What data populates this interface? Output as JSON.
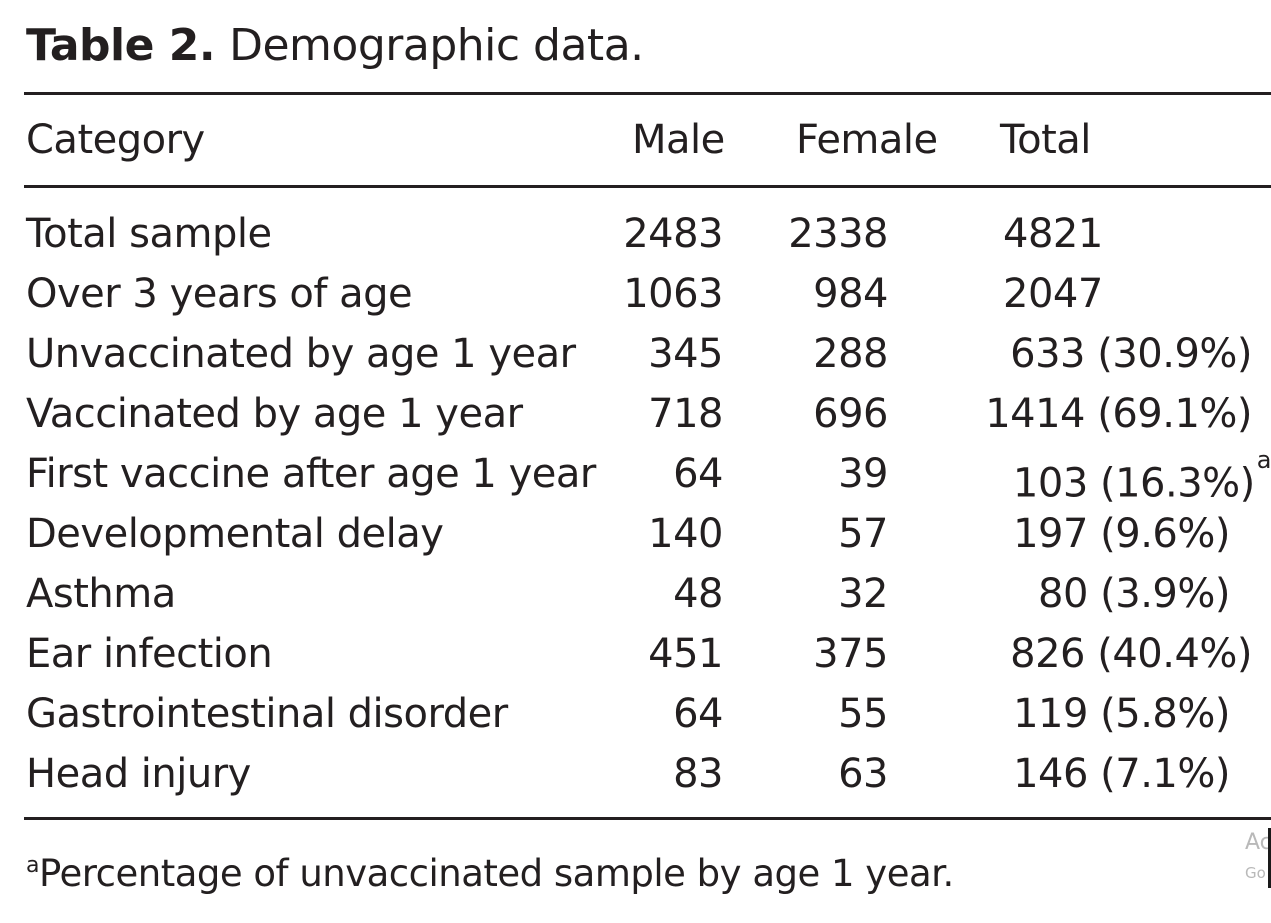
{
  "table": {
    "label": "Table 2.",
    "title": "Demographic data.",
    "columns": {
      "category": "Category",
      "male": "Male",
      "female": "Female",
      "total": "Total"
    },
    "rows": [
      {
        "category": "Total sample",
        "male": "2483",
        "female": "2338",
        "total": "4821",
        "pct": "",
        "note": ""
      },
      {
        "category": "Over 3 years of age",
        "male": "1063",
        "female": "984",
        "total": "2047",
        "pct": "",
        "note": ""
      },
      {
        "category": "Unvaccinated by age 1 year",
        "male": "345",
        "female": "288",
        "total": "633",
        "pct": "(30.9%)",
        "note": ""
      },
      {
        "category": "Vaccinated by age 1 year",
        "male": "718",
        "female": "696",
        "total": "1414",
        "pct": "(69.1%)",
        "note": ""
      },
      {
        "category": "First vaccine after age 1 year",
        "male": "64",
        "female": "39",
        "total": "103",
        "pct": "(16.3%)",
        "note": "a"
      },
      {
        "category": "Developmental delay",
        "male": "140",
        "female": "57",
        "total": "197",
        "pct": "(9.6%)",
        "note": ""
      },
      {
        "category": "Asthma",
        "male": "48",
        "female": "32",
        "total": "80",
        "pct": "(3.9%)",
        "note": ""
      },
      {
        "category": "Ear infection",
        "male": "451",
        "female": "375",
        "total": "826",
        "pct": "(40.4%)",
        "note": ""
      },
      {
        "category": "Gastrointestinal disorder",
        "male": "64",
        "female": "55",
        "total": "119",
        "pct": "(5.8%)",
        "note": ""
      },
      {
        "category": "Head injury",
        "male": "83",
        "female": "63",
        "total": "146",
        "pct": "(7.1%)",
        "note": ""
      }
    ],
    "footnote": {
      "mark": "a",
      "text": "Percentage of unvaccinated sample by age 1 year."
    }
  },
  "overlay": {
    "line1": "Ac",
    "line2": "Go"
  }
}
